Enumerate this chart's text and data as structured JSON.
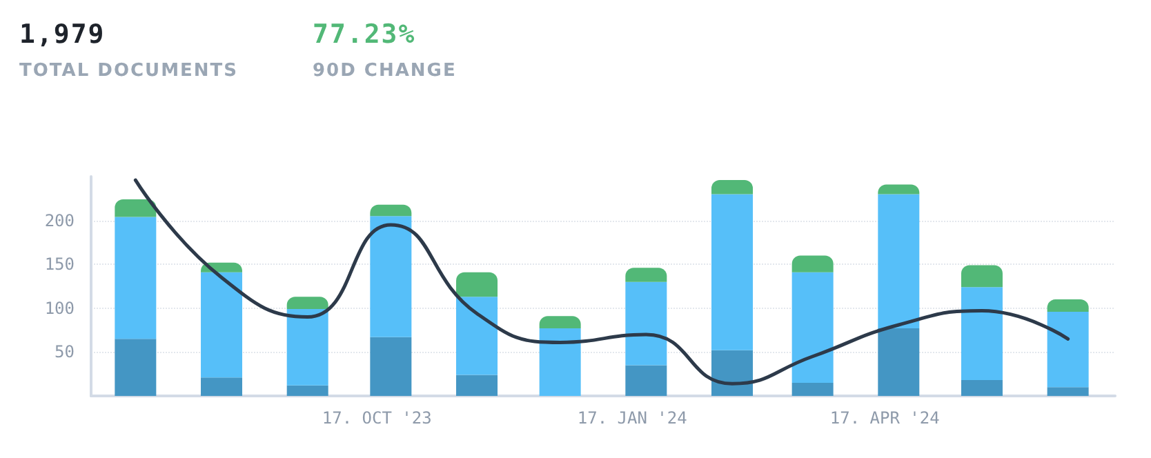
{
  "chart_data": {
    "type": "bar",
    "stacked": true,
    "annotations": [
      "1,979",
      "TOTAL DOCUMENTS",
      "77.23%",
      "90D CHANGE"
    ],
    "x": [
      "2023-07-22",
      "2023-08-22",
      "2023-09-22",
      "2023-10-22",
      "2023-11-22",
      "2023-12-22",
      "2024-01-22",
      "2024-02-22",
      "2024-03-22",
      "2024-04-22",
      "2024-05-22",
      "2024-06-22"
    ],
    "xlim": [
      "2023-07-06",
      "2024-07-09"
    ],
    "xticks": [
      {
        "value": "2023-10-17",
        "label": "17. OCT '23"
      },
      {
        "value": "2024-01-17",
        "label": "17. JAN '24"
      },
      {
        "value": "2024-04-17",
        "label": "17. APR '24"
      }
    ],
    "ylim": [
      0,
      250
    ],
    "yticks": [
      50,
      100,
      150,
      200
    ],
    "grid": "y",
    "series": [
      {
        "color": "#4496c4",
        "values": [
          65,
          21,
          12,
          67,
          24,
          0,
          35,
          52,
          15,
          77,
          18,
          10
        ]
      },
      {
        "color": "#56bff9",
        "values": [
          139,
          120,
          87,
          138,
          89,
          77,
          95,
          178,
          126,
          153,
          106,
          86
        ]
      },
      {
        "color": "#52b877",
        "values": [
          20,
          11,
          14,
          13,
          28,
          14,
          16,
          16,
          19,
          11,
          25,
          14
        ]
      },
      {
        "type": "line",
        "color": "#2d3a4a",
        "marker": "none",
        "line_style": "solid",
        "values": [
          246,
          135,
          90,
          195,
          94,
          61,
          70,
          14,
          45,
          81,
          97,
          65
        ]
      }
    ]
  }
}
